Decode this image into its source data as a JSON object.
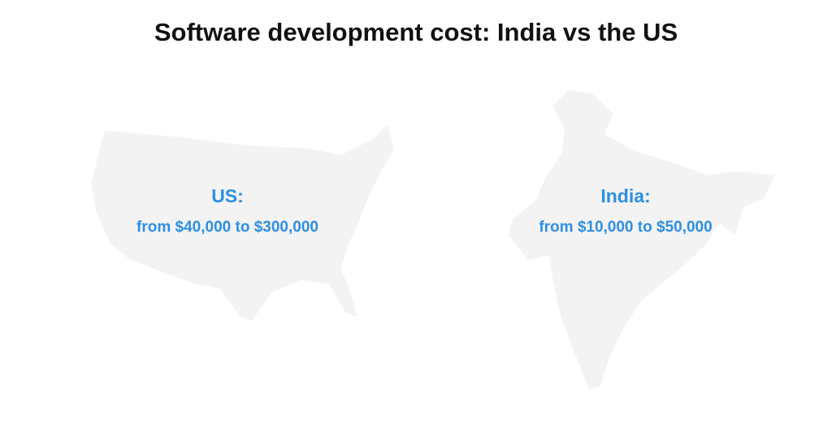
{
  "header": {
    "title": "Software development cost: India vs the US"
  },
  "regions": [
    {
      "label": "US:",
      "cost": "from $40,000 to $300,000"
    },
    {
      "label": "India:",
      "cost": "from $10,000 to $50,000"
    }
  ]
}
